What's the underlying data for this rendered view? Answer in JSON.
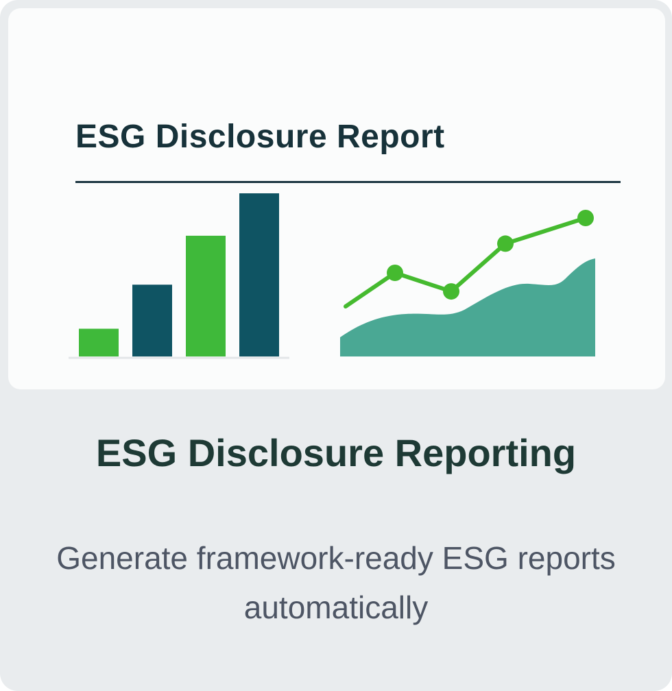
{
  "card": {
    "image": {
      "title": "ESG Disclosure Report",
      "colors": {
        "green": "#3fb93a",
        "navy": "#0f5463",
        "teal_area": "#4aa894",
        "line": "#45ba2f"
      },
      "bars": [
        {
          "value": 0.17,
          "color": "green"
        },
        {
          "value": 0.44,
          "color": "navy"
        },
        {
          "value": 0.74,
          "color": "green"
        },
        {
          "value": 1.0,
          "color": "navy"
        }
      ],
      "line_points": [
        0.0,
        0.38,
        0.17,
        0.71,
        1.0
      ]
    },
    "title": "ESG Disclosure Reporting",
    "description": "Generate framework-ready ESG reports automatically"
  }
}
